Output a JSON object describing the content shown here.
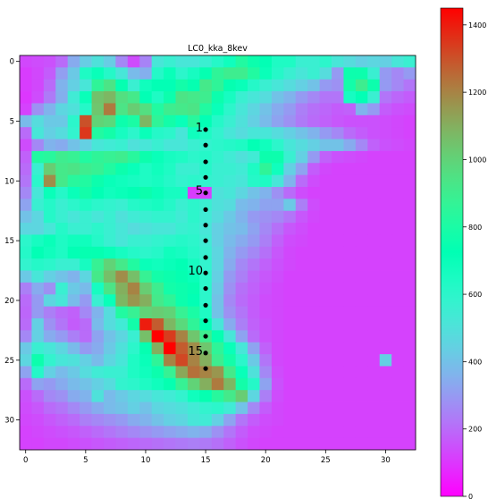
{
  "chart_data": {
    "type": "heatmap",
    "title": "LC0_kka_8kev",
    "xlabel": "",
    "ylabel": "",
    "xlim": [
      -0.5,
      32.5
    ],
    "ylim": [
      32.5,
      -0.5
    ],
    "x_ticks": [
      "0",
      "5",
      "10",
      "15",
      "20",
      "25",
      "30"
    ],
    "y_ticks": [
      "0",
      "5",
      "10",
      "15",
      "20",
      "25",
      "30"
    ],
    "colormap": "rainbow",
    "colorbar": {
      "min": 0,
      "max": 1450,
      "ticks": [
        "0",
        "200",
        "400",
        "600",
        "800",
        "1000",
        "1200",
        "1400"
      ]
    },
    "grid": false,
    "point_color": "#000000",
    "points": [
      {
        "x": 15,
        "y": 5.7,
        "label": "1"
      },
      {
        "x": 15,
        "y": 7.0,
        "label": ""
      },
      {
        "x": 15,
        "y": 8.4,
        "label": ""
      },
      {
        "x": 15,
        "y": 9.7,
        "label": ""
      },
      {
        "x": 15,
        "y": 11.0,
        "label": "5"
      },
      {
        "x": 15,
        "y": 12.4,
        "label": ""
      },
      {
        "x": 15,
        "y": 13.7,
        "label": ""
      },
      {
        "x": 15,
        "y": 15.0,
        "label": ""
      },
      {
        "x": 15,
        "y": 16.4,
        "label": ""
      },
      {
        "x": 15,
        "y": 17.7,
        "label": "10"
      },
      {
        "x": 15,
        "y": 19.0,
        "label": ""
      },
      {
        "x": 15,
        "y": 20.4,
        "label": ""
      },
      {
        "x": 15,
        "y": 21.7,
        "label": ""
      },
      {
        "x": 15,
        "y": 23.0,
        "label": ""
      },
      {
        "x": 15,
        "y": 24.4,
        "label": "15"
      },
      {
        "x": 15,
        "y": 25.7,
        "label": ""
      }
    ],
    "values": [
      [
        130,
        140,
        150,
        200,
        340,
        430,
        500,
        430,
        260,
        140,
        250,
        520,
        560,
        520,
        520,
        560,
        620,
        680,
        820,
        760,
        720,
        640,
        640,
        560,
        560,
        600,
        520,
        480,
        440,
        460,
        440,
        520,
        560
      ],
      [
        110,
        130,
        170,
        310,
        420,
        640,
        700,
        620,
        520,
        380,
        350,
        620,
        700,
        600,
        660,
        740,
        860,
        900,
        900,
        820,
        700,
        620,
        560,
        520,
        560,
        480,
        300,
        760,
        760,
        560,
        300,
        260,
        300
      ],
      [
        110,
        130,
        200,
        360,
        440,
        520,
        860,
        940,
        740,
        560,
        680,
        720,
        720,
        780,
        740,
        920,
        860,
        740,
        700,
        620,
        560,
        520,
        480,
        440,
        400,
        300,
        280,
        780,
        900,
        760,
        300,
        260,
        220
      ],
      [
        100,
        140,
        230,
        350,
        540,
        700,
        1050,
        1080,
        960,
        920,
        720,
        640,
        760,
        940,
        920,
        900,
        760,
        660,
        560,
        520,
        480,
        400,
        360,
        300,
        260,
        220,
        220,
        660,
        720,
        560,
        220,
        190,
        170
      ],
      [
        120,
        280,
        360,
        460,
        500,
        620,
        1040,
        1220,
        940,
        1020,
        960,
        820,
        900,
        920,
        940,
        820,
        700,
        600,
        520,
        460,
        400,
        340,
        300,
        240,
        210,
        190,
        170,
        180,
        360,
        300,
        170,
        150,
        140
      ],
      [
        380,
        480,
        420,
        420,
        600,
        1300,
        1000,
        980,
        760,
        800,
        1080,
        860,
        780,
        700,
        840,
        720,
        620,
        560,
        500,
        440,
        380,
        320,
        280,
        230,
        200,
        180,
        160,
        150,
        150,
        150,
        140,
        130,
        120
      ],
      [
        200,
        520,
        440,
        480,
        580,
        1350,
        820,
        780,
        660,
        600,
        700,
        620,
        600,
        520,
        680,
        640,
        580,
        520,
        480,
        520,
        520,
        480,
        440,
        400,
        360,
        300,
        260,
        200,
        170,
        150,
        140,
        130,
        120
      ],
      [
        140,
        260,
        360,
        340,
        400,
        440,
        520,
        540,
        560,
        500,
        520,
        560,
        520,
        520,
        560,
        580,
        600,
        620,
        640,
        720,
        680,
        600,
        520,
        480,
        440,
        400,
        400,
        340,
        260,
        180,
        150,
        140,
        130
      ],
      [
        180,
        820,
        840,
        900,
        880,
        820,
        860,
        880,
        900,
        840,
        760,
        700,
        660,
        640,
        600,
        620,
        580,
        540,
        500,
        540,
        760,
        760,
        560,
        440,
        300,
        180,
        150,
        140,
        130,
        120,
        120,
        120,
        120
      ],
      [
        200,
        560,
        1020,
        920,
        940,
        900,
        880,
        820,
        760,
        700,
        640,
        680,
        640,
        560,
        560,
        620,
        560,
        560,
        540,
        640,
        860,
        680,
        440,
        320,
        170,
        130,
        120,
        120,
        120,
        120,
        120,
        120,
        120
      ],
      [
        220,
        600,
        1180,
        920,
        840,
        820,
        760,
        700,
        680,
        660,
        640,
        660,
        620,
        580,
        600,
        580,
        560,
        540,
        520,
        620,
        640,
        520,
        360,
        200,
        140,
        120,
        120,
        120,
        120,
        120,
        120,
        120,
        120
      ],
      [
        260,
        520,
        700,
        620,
        700,
        780,
        720,
        680,
        700,
        720,
        760,
        700,
        660,
        660,
        110,
        120,
        500,
        520,
        460,
        400,
        360,
        280,
        200,
        140,
        120,
        120,
        120,
        120,
        120,
        120,
        120,
        120,
        120
      ],
      [
        320,
        560,
        620,
        560,
        600,
        640,
        600,
        580,
        560,
        620,
        640,
        660,
        620,
        560,
        600,
        560,
        500,
        480,
        380,
        360,
        320,
        320,
        420,
        240,
        140,
        120,
        120,
        120,
        120,
        120,
        120,
        120,
        120
      ],
      [
        400,
        460,
        620,
        560,
        520,
        560,
        520,
        560,
        500,
        540,
        560,
        580,
        580,
        540,
        600,
        540,
        480,
        420,
        360,
        300,
        280,
        260,
        220,
        160,
        130,
        120,
        120,
        120,
        120,
        120,
        120,
        120,
        120
      ],
      [
        460,
        460,
        520,
        620,
        560,
        560,
        600,
        560,
        520,
        480,
        500,
        520,
        520,
        560,
        580,
        520,
        440,
        400,
        380,
        320,
        260,
        210,
        160,
        140,
        120,
        120,
        120,
        120,
        120,
        120,
        120,
        120,
        120
      ],
      [
        600,
        660,
        700,
        640,
        680,
        680,
        620,
        560,
        520,
        560,
        560,
        580,
        600,
        620,
        600,
        540,
        440,
        380,
        340,
        300,
        240,
        180,
        140,
        130,
        120,
        120,
        120,
        120,
        120,
        120,
        120,
        120,
        120
      ],
      [
        620,
        720,
        680,
        640,
        720,
        740,
        740,
        700,
        660,
        620,
        600,
        620,
        680,
        660,
        620,
        560,
        460,
        360,
        300,
        260,
        210,
        160,
        130,
        120,
        120,
        120,
        120,
        120,
        120,
        120,
        120,
        120,
        120
      ],
      [
        580,
        620,
        600,
        560,
        560,
        660,
        880,
        1000,
        920,
        820,
        700,
        680,
        700,
        720,
        660,
        580,
        460,
        340,
        260,
        220,
        180,
        150,
        130,
        120,
        120,
        120,
        120,
        120,
        120,
        120,
        120,
        120,
        120
      ],
      [
        420,
        520,
        440,
        400,
        360,
        460,
        920,
        1060,
        1180,
        1060,
        880,
        780,
        760,
        740,
        700,
        600,
        440,
        300,
        240,
        190,
        160,
        140,
        120,
        120,
        120,
        120,
        120,
        120,
        120,
        120,
        120,
        120,
        120
      ],
      [
        240,
        340,
        280,
        560,
        420,
        380,
        660,
        940,
        1100,
        1200,
        1020,
        900,
        780,
        760,
        740,
        600,
        420,
        280,
        210,
        180,
        150,
        130,
        120,
        120,
        120,
        120,
        120,
        120,
        120,
        120,
        120,
        120,
        120
      ],
      [
        200,
        300,
        460,
        520,
        380,
        300,
        560,
        700,
        1080,
        1160,
        1100,
        920,
        860,
        760,
        720,
        600,
        400,
        260,
        200,
        170,
        140,
        130,
        120,
        120,
        120,
        120,
        120,
        120,
        120,
        120,
        120,
        120,
        120
      ],
      [
        190,
        300,
        240,
        200,
        180,
        260,
        360,
        480,
        820,
        880,
        1000,
        1020,
        1000,
        880,
        800,
        640,
        400,
        280,
        220,
        170,
        140,
        130,
        120,
        120,
        120,
        120,
        120,
        120,
        120,
        120,
        120,
        120,
        120
      ],
      [
        200,
        440,
        280,
        220,
        170,
        200,
        380,
        480,
        540,
        780,
        1400,
        1280,
        1080,
        980,
        860,
        720,
        520,
        340,
        240,
        180,
        150,
        130,
        120,
        120,
        120,
        120,
        120,
        120,
        120,
        120,
        120,
        120,
        120
      ],
      [
        260,
        440,
        340,
        300,
        240,
        200,
        320,
        400,
        460,
        560,
        1060,
        1450,
        1340,
        1200,
        1040,
        900,
        740,
        520,
        320,
        200,
        150,
        130,
        120,
        120,
        120,
        120,
        120,
        120,
        120,
        120,
        120,
        120,
        120
      ],
      [
        420,
        560,
        520,
        460,
        380,
        300,
        340,
        420,
        500,
        600,
        740,
        1100,
        1450,
        1280,
        1180,
        1040,
        860,
        700,
        520,
        320,
        180,
        130,
        120,
        120,
        120,
        120,
        120,
        120,
        120,
        120,
        120,
        120,
        120
      ],
      [
        460,
        760,
        580,
        520,
        500,
        440,
        380,
        460,
        520,
        640,
        700,
        860,
        1200,
        1320,
        1200,
        1100,
        900,
        780,
        600,
        420,
        220,
        130,
        120,
        120,
        120,
        120,
        120,
        120,
        120,
        120,
        440,
        120,
        120
      ],
      [
        320,
        620,
        440,
        380,
        420,
        480,
        540,
        560,
        560,
        640,
        680,
        760,
        880,
        1120,
        1240,
        1200,
        1160,
        920,
        700,
        500,
        260,
        140,
        120,
        120,
        120,
        120,
        120,
        120,
        120,
        120,
        120,
        120,
        120
      ],
      [
        200,
        320,
        300,
        340,
        380,
        400,
        440,
        480,
        580,
        600,
        640,
        680,
        740,
        880,
        1000,
        1100,
        1220,
        1080,
        780,
        620,
        320,
        150,
        120,
        120,
        120,
        120,
        120,
        120,
        120,
        120,
        120,
        120,
        120
      ],
      [
        150,
        200,
        260,
        280,
        340,
        360,
        500,
        380,
        420,
        460,
        480,
        520,
        540,
        580,
        680,
        740,
        840,
        920,
        1020,
        460,
        240,
        140,
        120,
        120,
        120,
        120,
        120,
        120,
        120,
        120,
        120,
        120,
        120
      ],
      [
        140,
        160,
        200,
        220,
        260,
        300,
        340,
        380,
        400,
        440,
        400,
        460,
        480,
        500,
        540,
        580,
        600,
        540,
        400,
        260,
        170,
        130,
        120,
        120,
        120,
        120,
        120,
        120,
        120,
        120,
        120,
        120,
        120
      ],
      [
        130,
        140,
        160,
        180,
        200,
        240,
        260,
        280,
        300,
        340,
        360,
        400,
        440,
        460,
        520,
        540,
        440,
        320,
        220,
        170,
        140,
        130,
        120,
        120,
        120,
        120,
        120,
        120,
        120,
        120,
        120,
        120,
        120
      ],
      [
        120,
        130,
        140,
        150,
        160,
        180,
        200,
        220,
        240,
        260,
        280,
        300,
        320,
        340,
        360,
        340,
        280,
        220,
        170,
        140,
        130,
        120,
        120,
        120,
        120,
        120,
        120,
        120,
        120,
        120,
        120,
        120,
        120
      ],
      [
        120,
        120,
        130,
        130,
        140,
        150,
        160,
        170,
        180,
        190,
        200,
        210,
        220,
        230,
        240,
        230,
        210,
        180,
        150,
        130,
        120,
        120,
        120,
        120,
        120,
        120,
        120,
        120,
        120,
        120,
        120,
        120,
        120
      ]
    ]
  }
}
